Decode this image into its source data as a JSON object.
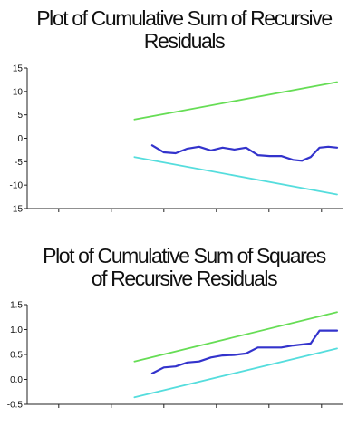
{
  "chart_data": [
    {
      "type": "line",
      "title_lines": [
        "Plot of Cumulative Sum of Recursive",
        "Residuals"
      ],
      "xlabel": "",
      "ylabel": "",
      "ylim": [
        -15,
        15
      ],
      "yticks": [
        15,
        10,
        5,
        0,
        -5,
        -10,
        -15
      ],
      "xticks": [
        "",
        "",
        "",
        "",
        "",
        ""
      ],
      "grid": false,
      "series": [
        {
          "color": "#66dd55",
          "values": [
            [
              0.31,
              4.0
            ],
            [
              1.0,
              12.0
            ]
          ]
        },
        {
          "color": "#3333cc",
          "values": [
            [
              0.37,
              -1.5
            ],
            [
              0.41,
              -3.0
            ],
            [
              0.45,
              -3.2
            ],
            [
              0.49,
              -2.2
            ],
            [
              0.53,
              -1.8
            ],
            [
              0.57,
              -2.6
            ],
            [
              0.61,
              -2.0
            ],
            [
              0.65,
              -2.4
            ],
            [
              0.69,
              -2.0
            ],
            [
              0.73,
              -3.6
            ],
            [
              0.77,
              -3.8
            ],
            [
              0.81,
              -3.8
            ],
            [
              0.85,
              -4.6
            ],
            [
              0.88,
              -4.8
            ],
            [
              0.91,
              -4.0
            ],
            [
              0.94,
              -2.0
            ],
            [
              0.97,
              -1.8
            ],
            [
              1.0,
              -2.0
            ]
          ]
        },
        {
          "color": "#55dddd",
          "values": [
            [
              0.31,
              -4.0
            ],
            [
              1.0,
              -12.0
            ]
          ]
        }
      ]
    },
    {
      "type": "line",
      "title_lines": [
        "Plot of Cumulative Sum of Squares",
        "of Recursive Residuals"
      ],
      "xlabel": "",
      "ylabel": "",
      "ylim": [
        -0.5,
        1.5
      ],
      "yticks": [
        "1.5",
        "1.0",
        "0.5",
        "0.0",
        "-0.5"
      ],
      "xticks": [
        "",
        "",
        "",
        "",
        "",
        ""
      ],
      "grid": false,
      "series": [
        {
          "color": "#66dd55",
          "values": [
            [
              0.31,
              0.36
            ],
            [
              1.0,
              1.35
            ]
          ]
        },
        {
          "color": "#3333cc",
          "values": [
            [
              0.37,
              0.12
            ],
            [
              0.41,
              0.24
            ],
            [
              0.45,
              0.26
            ],
            [
              0.49,
              0.34
            ],
            [
              0.53,
              0.36
            ],
            [
              0.57,
              0.44
            ],
            [
              0.61,
              0.48
            ],
            [
              0.65,
              0.49
            ],
            [
              0.69,
              0.52
            ],
            [
              0.73,
              0.64
            ],
            [
              0.77,
              0.64
            ],
            [
              0.81,
              0.64
            ],
            [
              0.85,
              0.68
            ],
            [
              0.88,
              0.7
            ],
            [
              0.91,
              0.72
            ],
            [
              0.94,
              0.98
            ],
            [
              0.97,
              0.98
            ],
            [
              1.0,
              0.98
            ]
          ]
        },
        {
          "color": "#55dddd",
          "values": [
            [
              0.31,
              -0.36
            ],
            [
              1.0,
              0.62
            ]
          ]
        }
      ]
    }
  ]
}
